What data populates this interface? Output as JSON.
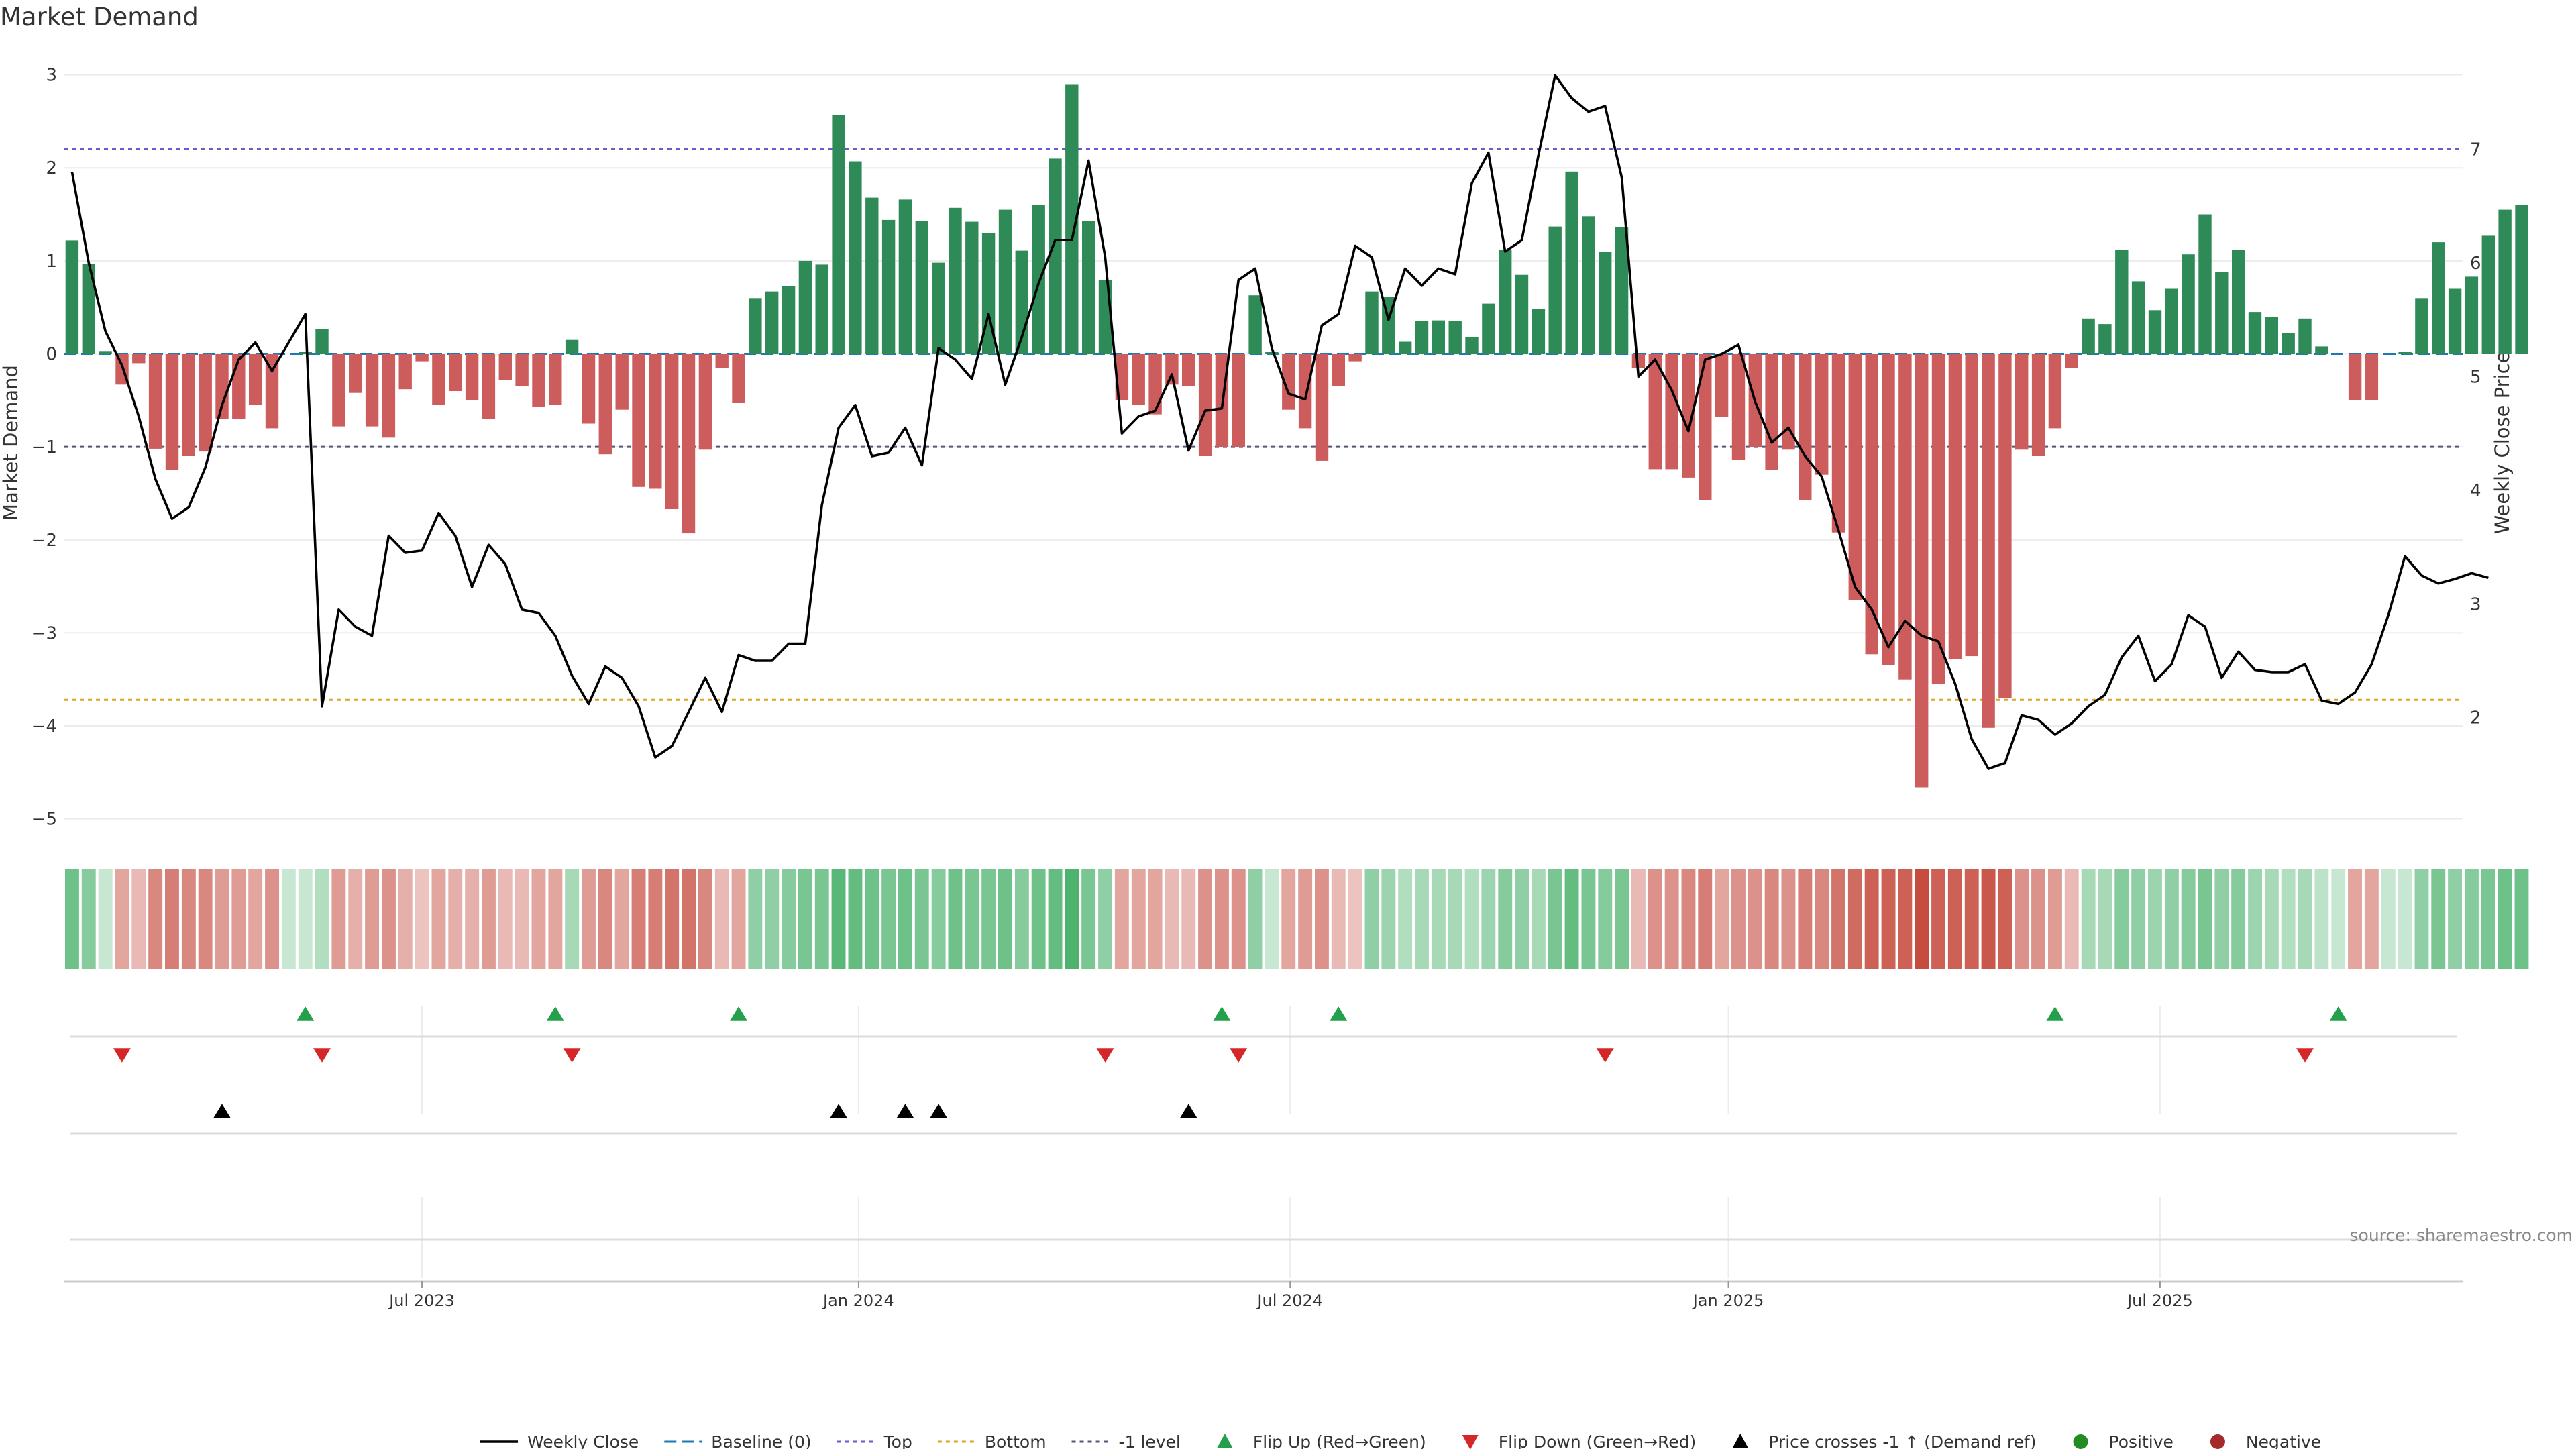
{
  "chart_data": {
    "type": "bar",
    "title": "Market Demand",
    "ylabel": "Market Demand",
    "y2label": "Weekly Close Price",
    "ylim": [
      -5.5,
      3.3
    ],
    "y2lim": [
      0.7,
      7.9
    ],
    "yticks": [
      {
        "v": 3,
        "label": "3"
      },
      {
        "v": 2,
        "label": "2"
      },
      {
        "v": 1,
        "label": "1"
      },
      {
        "v": 0,
        "label": "0"
      },
      {
        "v": -1,
        "label": "−1"
      },
      {
        "v": -2,
        "label": "−2"
      },
      {
        "v": -3,
        "label": "−3"
      },
      {
        "v": -4,
        "label": "−4"
      },
      {
        "v": -5,
        "label": "−5"
      }
    ],
    "y2ticks": [
      {
        "v": 7,
        "label": "7"
      },
      {
        "v": 6,
        "label": "6"
      },
      {
        "v": 5,
        "label": "5"
      },
      {
        "v": 4,
        "label": "4"
      },
      {
        "v": 3,
        "label": "3"
      },
      {
        "v": 2,
        "label": "2"
      }
    ],
    "xlim": [
      0,
      144
    ],
    "xticks": [
      {
        "x": 21.5,
        "label": "Jul 2023"
      },
      {
        "x": 47.7,
        "label": "Jan 2024"
      },
      {
        "x": 73.6,
        "label": "Jul 2024"
      },
      {
        "x": 99.9,
        "label": "Jan 2025"
      },
      {
        "x": 125.8,
        "label": "Jul 2025"
      }
    ],
    "reference_lines": {
      "top": 2.2,
      "bottom": -3.72,
      "minus_one": -1,
      "baseline": 0
    },
    "colors": {
      "positive": "#2e8b57",
      "negative": "#cd5c5c",
      "close_line": "#000000",
      "top_line": "#6a5acd",
      "bottom_line": "#daa520",
      "minus_one_line": "#555577",
      "baseline": "#1f77b4",
      "flip_up": "#22a04b",
      "flip_down": "#d62728",
      "cross": "#000000",
      "positive_dot": "#228b22",
      "negative_dot": "#a52a2a"
    },
    "demand": [
      1.22,
      0.97,
      0.03,
      -0.33,
      -0.1,
      -1.02,
      -1.25,
      -1.1,
      -1.05,
      -0.7,
      -0.7,
      -0.55,
      -0.8,
      0,
      0.02,
      0.27,
      -0.78,
      -0.42,
      -0.78,
      -0.9,
      -0.38,
      -0.08,
      -0.55,
      -0.4,
      -0.5,
      -0.7,
      -0.28,
      -0.35,
      -0.57,
      -0.55,
      0.15,
      -0.75,
      -1.08,
      -0.6,
      -1.43,
      -1.45,
      -1.67,
      -1.93,
      -1.03,
      -0.15,
      -0.53,
      0.6,
      0.67,
      0.73,
      1.0,
      0.96,
      2.57,
      2.07,
      1.68,
      1.44,
      1.66,
      1.43,
      0.98,
      1.57,
      1.42,
      1.3,
      1.55,
      1.11,
      1.6,
      2.1,
      2.9,
      1.43,
      0.79,
      -0.5,
      -0.55,
      -0.65,
      -0.33,
      -0.35,
      -1.1,
      -1.0,
      -1.0,
      0.63,
      0.02,
      -0.6,
      -0.8,
      -1.15,
      -0.35,
      -0.08,
      0.67,
      0.61,
      0.13,
      0.35,
      0.36,
      0.35,
      0.18,
      0.54,
      1.12,
      0.85,
      0.48,
      1.37,
      1.96,
      1.48,
      1.1,
      1.36,
      -0.15,
      -1.24,
      -1.24,
      -1.33,
      -1.57,
      -0.68,
      -1.14,
      -1.0,
      -1.25,
      -1.03,
      -1.57,
      -1.3,
      -1.92,
      -2.65,
      -3.23,
      -3.35,
      -3.5,
      -4.66,
      -3.55,
      -3.28,
      -3.25,
      -4.02,
      -3.7,
      -1.03,
      -1.1,
      -0.8,
      -0.15,
      0.38,
      0.32,
      1.12,
      0.78,
      0.47,
      0.7,
      1.07,
      1.5,
      0.88,
      1.12,
      0.45,
      0.4,
      0.22,
      0.38,
      0.08,
      0,
      -0.5,
      -0.5,
      0,
      0.02,
      0.6,
      1.2,
      0.7,
      0.83,
      1.27,
      1.55,
      1.6
    ],
    "close": [
      6.8,
      6.0,
      5.4,
      5.1,
      4.65,
      4.1,
      3.75,
      3.85,
      4.2,
      4.75,
      5.15,
      5.3,
      5.05,
      5.3,
      5.55,
      2.1,
      2.95,
      2.8,
      2.72,
      3.6,
      3.45,
      3.47,
      3.8,
      3.6,
      3.15,
      3.52,
      3.35,
      2.95,
      2.92,
      2.72,
      2.37,
      2.12,
      2.45,
      2.35,
      2.1,
      1.65,
      1.75,
      2.05,
      2.35,
      2.05,
      2.55,
      2.5,
      2.5,
      2.65,
      2.65,
      3.87,
      4.55,
      4.75,
      4.3,
      4.33,
      4.55,
      4.22,
      5.25,
      5.15,
      4.98,
      5.55,
      4.93,
      5.35,
      5.82,
      6.2,
      6.2,
      6.9,
      6.05,
      4.5,
      4.65,
      4.7,
      5.02,
      4.35,
      4.7,
      4.72,
      5.85,
      5.95,
      5.25,
      4.85,
      4.8,
      5.45,
      5.55,
      6.15,
      6.05,
      5.5,
      5.95,
      5.8,
      5.95,
      5.9,
      6.7,
      6.97,
      6.1,
      6.2,
      6.95,
      7.65,
      7.45,
      7.33,
      7.38,
      6.75,
      5.0,
      5.15,
      4.88,
      4.52,
      5.15,
      5.2,
      5.28,
      4.78,
      4.42,
      4.55,
      4.3,
      4.12,
      3.65,
      3.15,
      2.95,
      2.62,
      2.85,
      2.72,
      2.67,
      2.3,
      1.81,
      1.55,
      1.6,
      2.02,
      1.98,
      1.85,
      1.95,
      2.1,
      2.2,
      2.53,
      2.72,
      2.32,
      2.47,
      2.9,
      2.8,
      2.35,
      2.58,
      2.42,
      2.4,
      2.4,
      2.47,
      2.15,
      2.12,
      2.22,
      2.47,
      2.9,
      3.42,
      3.25,
      3.18,
      3.22,
      3.27,
      3.23
    ],
    "strip_alpha": [
      0.65,
      0.55,
      0.25,
      0.45,
      0.35,
      0.6,
      0.65,
      0.6,
      0.6,
      0.5,
      0.5,
      0.45,
      0.55,
      0.25,
      0.25,
      0.35,
      0.5,
      0.4,
      0.5,
      0.55,
      0.4,
      0.3,
      0.45,
      0.4,
      0.4,
      0.5,
      0.35,
      0.35,
      0.45,
      0.45,
      0.4,
      0.5,
      0.6,
      0.45,
      0.65,
      0.65,
      0.7,
      0.7,
      0.6,
      0.35,
      0.45,
      0.5,
      0.5,
      0.55,
      0.6,
      0.6,
      0.75,
      0.7,
      0.65,
      0.6,
      0.65,
      0.6,
      0.55,
      0.65,
      0.6,
      0.6,
      0.65,
      0.55,
      0.65,
      0.7,
      0.8,
      0.6,
      0.5,
      0.45,
      0.45,
      0.45,
      0.35,
      0.35,
      0.55,
      0.55,
      0.55,
      0.5,
      0.25,
      0.45,
      0.5,
      0.55,
      0.35,
      0.3,
      0.5,
      0.45,
      0.35,
      0.4,
      0.4,
      0.4,
      0.35,
      0.45,
      0.55,
      0.5,
      0.4,
      0.6,
      0.7,
      0.6,
      0.55,
      0.6,
      0.35,
      0.55,
      0.55,
      0.6,
      0.65,
      0.45,
      0.55,
      0.55,
      0.6,
      0.55,
      0.65,
      0.6,
      0.7,
      0.75,
      0.8,
      0.8,
      0.8,
      0.9,
      0.8,
      0.8,
      0.8,
      0.85,
      0.8,
      0.55,
      0.55,
      0.5,
      0.35,
      0.4,
      0.4,
      0.55,
      0.5,
      0.45,
      0.5,
      0.55,
      0.6,
      0.5,
      0.55,
      0.45,
      0.4,
      0.35,
      0.4,
      0.3,
      0.25,
      0.45,
      0.45,
      0.25,
      0.25,
      0.5,
      0.6,
      0.5,
      0.55,
      0.6,
      0.65,
      0.65
    ],
    "flip_up_idx": [
      14,
      29,
      40,
      69,
      76,
      119,
      136
    ],
    "flip_down_idx": [
      3,
      15,
      30,
      62,
      70,
      92,
      134
    ],
    "cross_idx": [
      9,
      46,
      50,
      52,
      67
    ],
    "legend": [
      {
        "type": "line",
        "label": "Weekly Close"
      },
      {
        "type": "baseline",
        "label": "Baseline (0)"
      },
      {
        "type": "top",
        "label": "Top"
      },
      {
        "type": "bottom",
        "label": "Bottom"
      },
      {
        "type": "minus_one",
        "label": "-1 level"
      },
      {
        "type": "flip_up",
        "label": "Flip Up (Red→Green)"
      },
      {
        "type": "flip_down",
        "label": "Flip Down (Green→Red)"
      },
      {
        "type": "cross",
        "label": "Price crosses -1 ↑ (Demand ref)"
      },
      {
        "type": "positive",
        "label": "Positive"
      },
      {
        "type": "negative",
        "label": "Negative"
      }
    ],
    "source": "source: sharemaestro.com"
  }
}
